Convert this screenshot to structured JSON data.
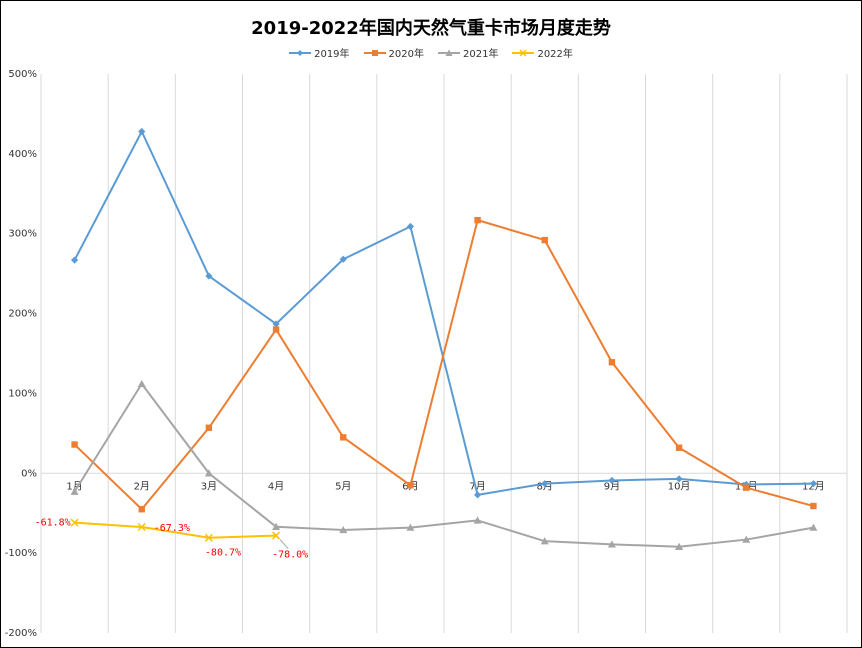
{
  "chart_data": {
    "type": "line",
    "title": "2019-2022年国内天然气重卡市场月度走势",
    "categories": [
      "1月",
      "2月",
      "3月",
      "4月",
      "5月",
      "6月",
      "7月",
      "8月",
      "9月",
      "10月",
      "11月",
      "12月"
    ],
    "ylim": [
      -200,
      500
    ],
    "y_ticks": [
      500,
      400,
      300,
      200,
      100,
      0,
      -100,
      -200
    ],
    "y_tick_labels": [
      "500%",
      "400%",
      "300%",
      "200%",
      "100%",
      "0%",
      "-100%",
      "-200%"
    ],
    "grid": "vertical",
    "legend_position": "top",
    "series": [
      {
        "name": "2019年",
        "color": "#5B9BD5",
        "marker": "diamond",
        "values": [
          267,
          428,
          247,
          187,
          268,
          309,
          -27,
          -13,
          -9,
          -7,
          -14,
          -13
        ]
      },
      {
        "name": "2020年",
        "color": "#ED7D31",
        "marker": "square",
        "values": [
          36,
          -45,
          57,
          180,
          45,
          -15,
          317,
          292,
          139,
          32,
          -18,
          -41
        ]
      },
      {
        "name": "2021年",
        "color": "#A5A5A5",
        "marker": "triangle",
        "values": [
          -23,
          112,
          0,
          -67,
          -71,
          -68,
          -59,
          -85,
          -89,
          -92,
          -83,
          -68
        ]
      },
      {
        "name": "2022年",
        "color": "#FFC000",
        "marker": "x",
        "values": [
          -61.8,
          -67.3,
          -80.7,
          -78.0,
          null,
          null,
          null,
          null,
          null,
          null,
          null,
          null
        ]
      }
    ],
    "annotations": [
      {
        "series": "2022年",
        "index": 0,
        "text": "-61.8%"
      },
      {
        "series": "2022年",
        "index": 1,
        "text": "-67.3%"
      },
      {
        "series": "2022年",
        "index": 2,
        "text": "-80.7%"
      },
      {
        "series": "2022年",
        "index": 3,
        "text": "-78.0%"
      }
    ]
  }
}
